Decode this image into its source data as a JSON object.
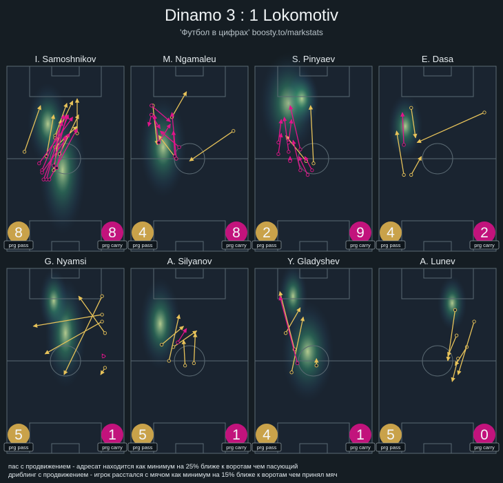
{
  "title": "Dinamo 3 : 1 Lokomotiv",
  "subtitle": "'Футбол в цифрах' boosty.to/markstats",
  "badge_labels": {
    "pass": "prg pass",
    "carry": "prg carry"
  },
  "colors": {
    "pass": "#e8c35a",
    "carry": "#e0158a",
    "pass_badge": "#c9a24a",
    "carry_badge": "#c2137c",
    "pitch_line": "#5b6a73",
    "background": "#151d23"
  },
  "footer": {
    "line1": "пас с продвижением - адресат находится как минимум на 25% ближе к воротам чем пасующий",
    "line2": "дриблинг с продвижением - игрок расстался с мячом как минимум на 15% ближе к воротам чем принял мяч"
  },
  "chart_data": [
    {
      "type": "scatter",
      "player": "I. Samoshnikov",
      "prg_pass": 8,
      "prg_carry": 8,
      "heat": [
        [
          38,
          45,
          16,
          28
        ],
        [
          28,
          25,
          14,
          18
        ]
      ],
      "passes": [
        [
          23,
          17,
          12,
          37
        ],
        [
          37,
          23,
          32,
          45
        ],
        [
          49,
          21,
          36,
          38
        ],
        [
          41,
          16,
          33,
          30
        ],
        [
          48,
          14,
          48,
          29
        ],
        [
          45,
          15,
          33,
          31
        ],
        [
          32,
          21,
          27,
          39
        ],
        [
          48,
          26,
          33,
          35
        ]
      ],
      "carries": [
        [
          48,
          27,
          29,
          49
        ],
        [
          40,
          30,
          34,
          44
        ],
        [
          45,
          22,
          22,
          42
        ],
        [
          42,
          21,
          25,
          49
        ],
        [
          38,
          24,
          24,
          45
        ],
        [
          39,
          21,
          27,
          49
        ],
        [
          43,
          29,
          24,
          46
        ],
        [
          41,
          21,
          32,
          43
        ]
      ]
    },
    {
      "type": "scatter",
      "player": "M. Ngamaleu",
      "prg_pass": 4,
      "prg_carry": 8,
      "heat": [
        [
          22,
          35,
          16,
          22
        ]
      ],
      "passes": [
        [
          38,
          11,
          28,
          22
        ],
        [
          40,
          41,
          70,
          28
        ],
        [
          18,
          34,
          15,
          17
        ],
        [
          19,
          30,
          31,
          40
        ]
      ],
      "carries": [
        [
          27,
          24,
          14,
          17
        ],
        [
          20,
          27,
          14,
          21
        ],
        [
          27,
          25,
          19,
          33
        ],
        [
          29,
          28,
          30,
          39
        ],
        [
          16,
          21,
          19,
          33
        ],
        [
          28,
          20,
          31,
          40
        ],
        [
          12,
          26,
          14,
          21
        ],
        [
          20,
          28,
          33,
          35
        ]
      ]
    },
    {
      "type": "scatter",
      "player": "S. Pinyaev",
      "prg_pass": 2,
      "prg_carry": 9,
      "heat": [
        [
          23,
          16,
          20,
          22
        ],
        [
          32,
          14,
          12,
          12
        ]
      ],
      "passes": [
        [
          21,
          30,
          35,
          41
        ],
        [
          38,
          17,
          40,
          42
        ]
      ],
      "carries": [
        [
          24,
          17,
          31,
          36
        ],
        [
          18,
          23,
          16,
          33
        ],
        [
          18,
          29,
          16,
          38
        ],
        [
          20,
          22,
          23,
          37
        ],
        [
          25,
          23,
          23,
          33
        ],
        [
          26,
          32,
          31,
          45
        ],
        [
          34,
          39,
          39,
          45
        ],
        [
          24,
          39,
          24,
          41
        ],
        [
          30,
          39,
          36,
          47
        ]
      ]
    },
    {
      "type": "scatter",
      "player": "E. Dasa",
      "prg_pass": 4,
      "prg_carry": 2,
      "heat": [
        [
          18,
          26,
          12,
          14
        ]
      ],
      "passes": [
        [
          25,
          31,
          22,
          18
        ],
        [
          29,
          39,
          22,
          47
        ],
        [
          12,
          28,
          17,
          47
        ],
        [
          26,
          33,
          72,
          20
        ]
      ],
      "carries": [
        [
          16,
          20,
          17,
          34
        ]
      ]
    },
    {
      "type": "scatter",
      "player": "G. Nyamsi",
      "prg_pass": 5,
      "prg_carry": 1,
      "heat": [
        [
          40,
          28,
          14,
          24
        ],
        [
          32,
          14,
          10,
          14
        ]
      ],
      "passes": [
        [
          18,
          25,
          65,
          20
        ],
        [
          49,
          12,
          67,
          28
        ],
        [
          39,
          46,
          65,
          12
        ],
        [
          26,
          37,
          65,
          23
        ],
        [
          64,
          46,
          67,
          43
        ]
      ],
      "carries": [
        [
          65,
          37,
          66,
          38
        ]
      ]
    },
    {
      "type": "scatter",
      "player": "A. Silyanov",
      "prg_pass": 5,
      "prg_carry": 1,
      "heat": [
        [
          20,
          24,
          14,
          20
        ]
      ],
      "passes": [
        [
          44,
          28,
          43,
          41
        ],
        [
          36,
          25,
          21,
          33
        ],
        [
          45,
          27,
          29,
          34
        ],
        [
          33,
          20,
          26,
          40
        ],
        [
          36,
          31,
          37,
          42
        ]
      ],
      "carries": [
        [
          38,
          26,
          32,
          32
        ]
      ]
    },
    {
      "type": "scatter",
      "player": "Y. Gladyshev",
      "prg_pass": 4,
      "prg_carry": 1,
      "heat": [
        [
          36,
          36,
          18,
          22
        ],
        [
          26,
          12,
          10,
          14
        ]
      ],
      "passes": [
        [
          33,
          21,
          25,
          45
        ],
        [
          17,
          10,
          27,
          35
        ],
        [
          31,
          17,
          21,
          28
        ],
        [
          42,
          39,
          42,
          42
        ]
      ],
      "carries": [
        [
          17,
          12,
          29,
          41
        ]
      ]
    },
    {
      "type": "scatter",
      "player": "A. Lunev",
      "prg_pass": 5,
      "prg_carry": 0,
      "heat": [
        [
          50,
          15,
          10,
          12
        ]
      ],
      "passes": [
        [
          47,
          40,
          52,
          18
        ],
        [
          50,
          49,
          54,
          39
        ],
        [
          47,
          38,
          53,
          29
        ],
        [
          52,
          42,
          60,
          34
        ],
        [
          54,
          46,
          65,
          23
        ]
      ],
      "carries": []
    }
  ]
}
